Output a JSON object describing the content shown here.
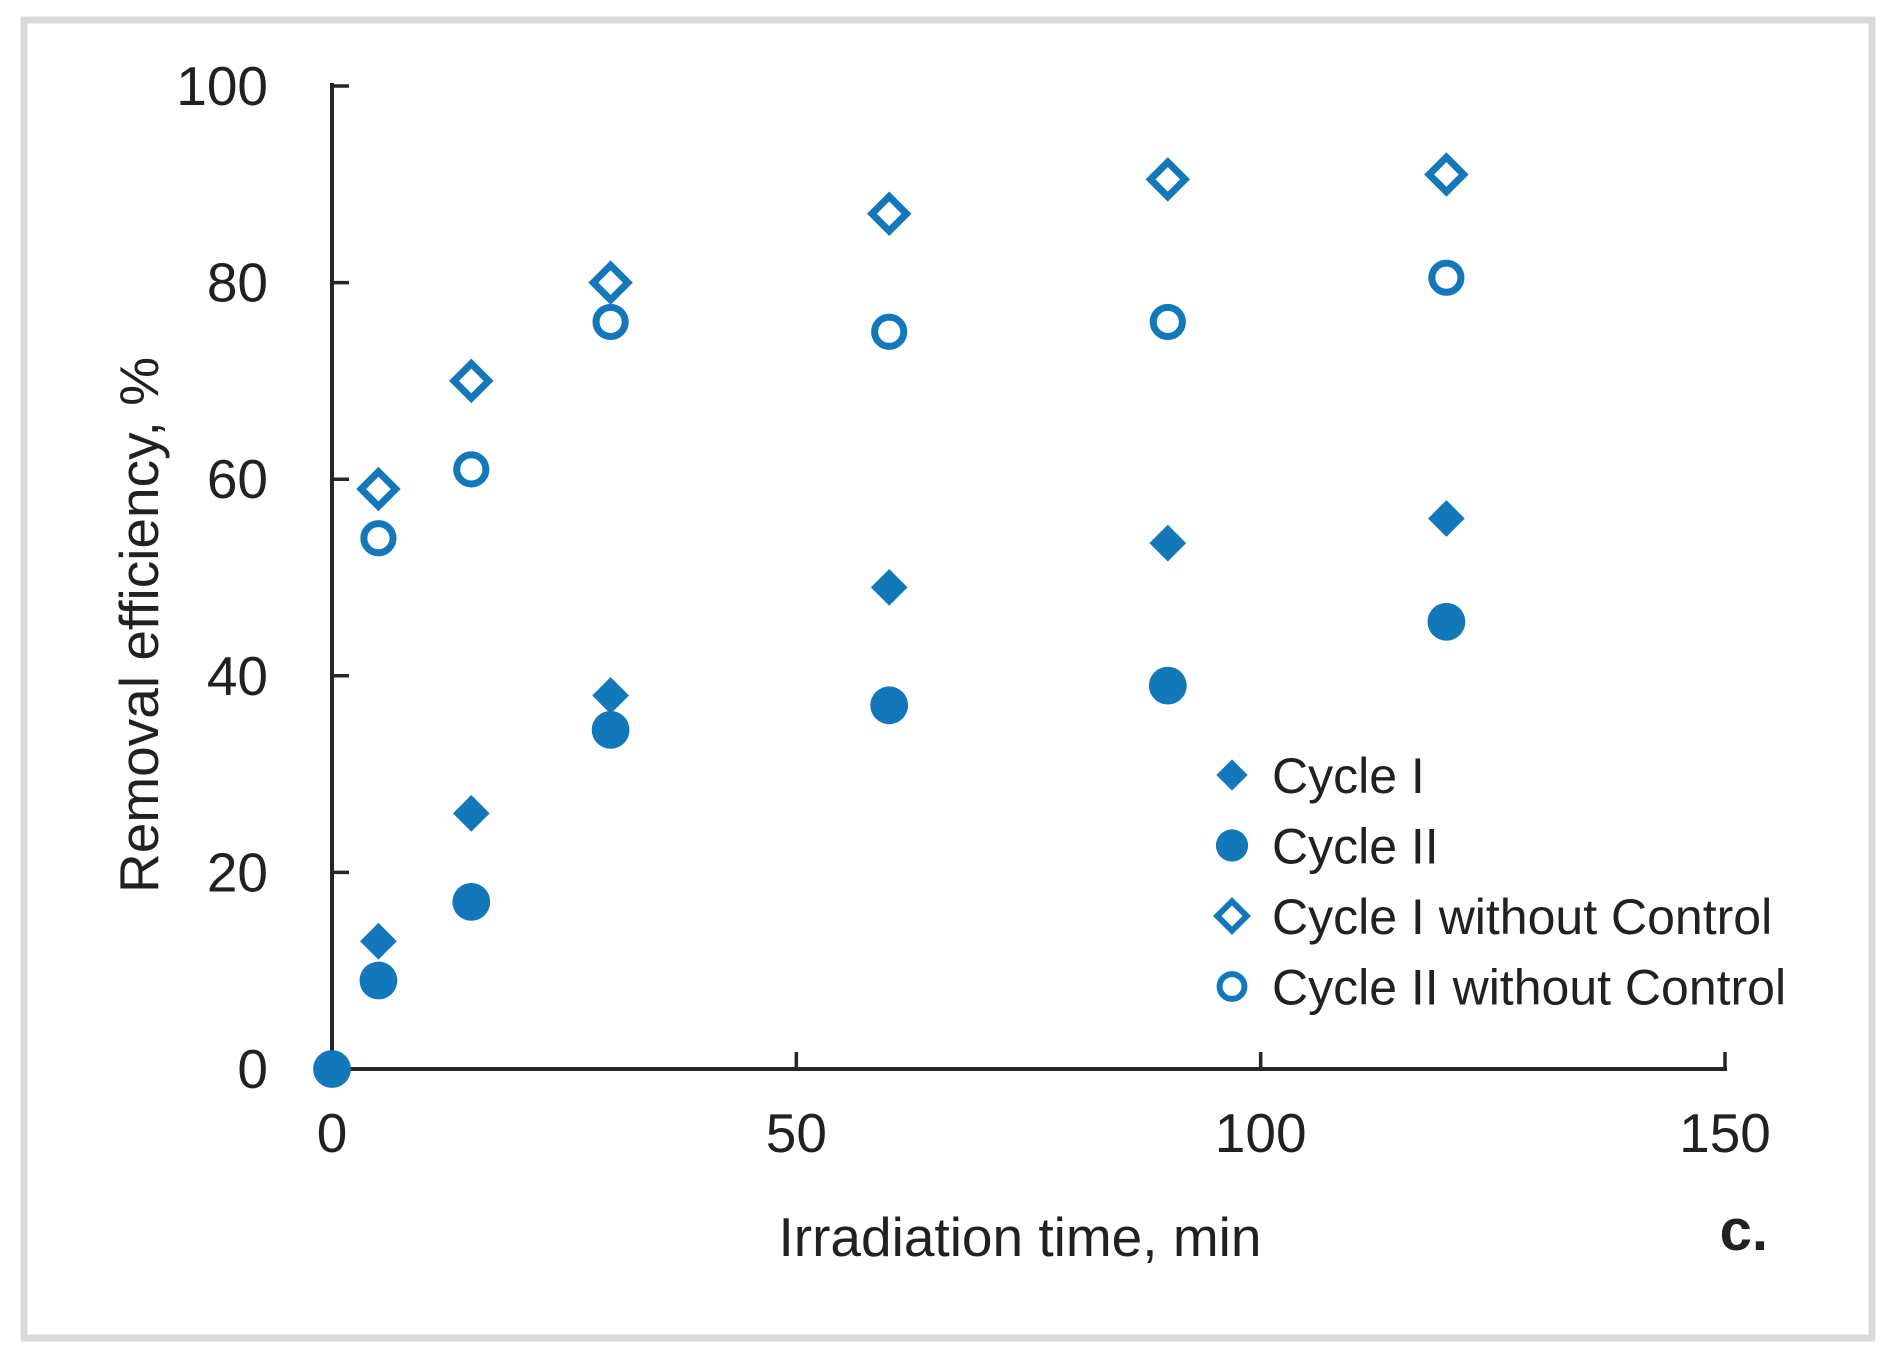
{
  "figure": {
    "panel_label": "c.",
    "background": "#ffffff",
    "border_color": "#d9d9d9",
    "axis_color": "#262626",
    "text_color": "#212121",
    "marker_color": "#1278b9"
  },
  "chart_data": {
    "type": "scatter",
    "title": "",
    "xlabel": "Irradiation time, min",
    "ylabel": "Removal efficiency, %",
    "xlim": [
      0,
      150
    ],
    "ylim": [
      0,
      100
    ],
    "x_ticks": [
      0,
      50,
      100,
      150
    ],
    "y_ticks": [
      0,
      20,
      40,
      60,
      80,
      100
    ],
    "grid": false,
    "legend_position": "inside-right",
    "legend_entries": [
      "Cycle I",
      "Cycle II",
      "Cycle I without Control",
      "Cycle II without Control"
    ],
    "series": [
      {
        "name": "Cycle I",
        "marker": "diamond-filled",
        "points": [
          [
            0,
            0
          ],
          [
            5,
            13
          ],
          [
            15,
            26
          ],
          [
            30,
            38
          ],
          [
            60,
            49
          ],
          [
            90,
            53.5
          ],
          [
            120,
            56
          ]
        ]
      },
      {
        "name": "Cycle II",
        "marker": "circle-filled",
        "points": [
          [
            0,
            0
          ],
          [
            5,
            9
          ],
          [
            15,
            17
          ],
          [
            30,
            34.5
          ],
          [
            60,
            37
          ],
          [
            90,
            39
          ],
          [
            120,
            45.5
          ]
        ]
      },
      {
        "name": "Cycle I without Control",
        "marker": "diamond-open",
        "points": [
          [
            5,
            59
          ],
          [
            15,
            70
          ],
          [
            30,
            80
          ],
          [
            60,
            87
          ],
          [
            90,
            90.5
          ],
          [
            120,
            91
          ]
        ]
      },
      {
        "name": "Cycle II without Control",
        "marker": "circle-open",
        "points": [
          [
            5,
            54
          ],
          [
            15,
            61
          ],
          [
            30,
            76
          ],
          [
            60,
            75
          ],
          [
            90,
            76
          ],
          [
            120,
            80.5
          ]
        ]
      }
    ]
  }
}
